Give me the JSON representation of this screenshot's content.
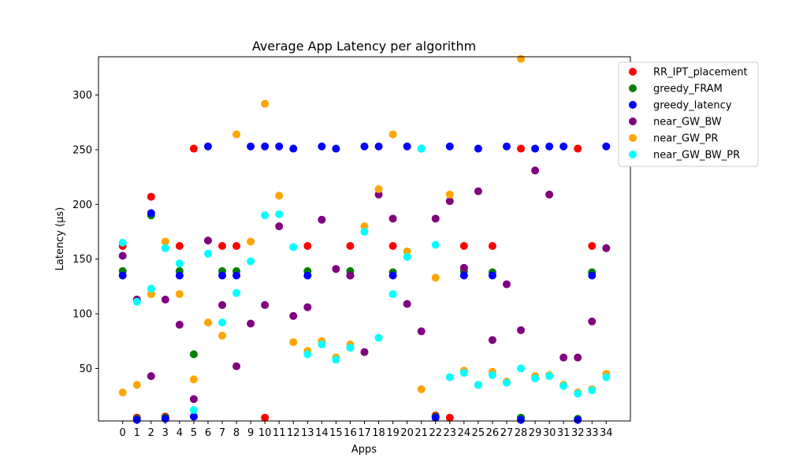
{
  "chart_data": {
    "type": "scatter",
    "title": "Average App Latency per algorithm",
    "xlabel": "Apps",
    "ylabel": "Latency (μs)",
    "x": [
      0,
      1,
      2,
      3,
      4,
      5,
      6,
      7,
      8,
      9,
      10,
      11,
      12,
      13,
      14,
      15,
      16,
      17,
      18,
      19,
      20,
      21,
      22,
      23,
      24,
      25,
      26,
      27,
      28,
      29,
      30,
      31,
      32,
      33,
      34
    ],
    "xlim": [
      -1.7,
      35.7
    ],
    "ylim": [
      2,
      335
    ],
    "yticks": [
      50,
      100,
      150,
      200,
      250,
      300
    ],
    "grid": false,
    "legend_position": "top-right outside",
    "series": [
      {
        "name": "RR_IPT_placement",
        "color": "#ff0000",
        "values": [
          162,
          5,
          207,
          6,
          162,
          251,
          null,
          162,
          162,
          null,
          5,
          null,
          null,
          162,
          null,
          null,
          162,
          null,
          null,
          162,
          null,
          null,
          7,
          5,
          162,
          null,
          162,
          null,
          251,
          null,
          null,
          null,
          251,
          162,
          null
        ]
      },
      {
        "name": "greedy_FRAM",
        "color": "#008000",
        "values": [
          139,
          4,
          190,
          5,
          139,
          63,
          null,
          139,
          139,
          null,
          null,
          null,
          null,
          139,
          null,
          null,
          139,
          null,
          null,
          138,
          null,
          null,
          6,
          null,
          139,
          null,
          138,
          null,
          5,
          null,
          null,
          null,
          4,
          138,
          null
        ]
      },
      {
        "name": "greedy_latency",
        "color": "#0000ff",
        "values": [
          135,
          3,
          192,
          4,
          135,
          6,
          253,
          135,
          135,
          253,
          253,
          253,
          251,
          135,
          253,
          251,
          135,
          253,
          253,
          135,
          253,
          251,
          5,
          253,
          135,
          251,
          135,
          253,
          3,
          251,
          253,
          253,
          3,
          135,
          253
        ]
      },
      {
        "name": "near_GW_BW",
        "color": "#800080",
        "values": [
          153,
          113,
          43,
          113,
          90,
          22,
          167,
          108,
          52,
          91,
          108,
          180,
          98,
          106,
          186,
          141,
          135,
          65,
          209,
          187,
          109,
          84,
          187,
          203,
          142,
          212,
          76,
          127,
          85,
          231,
          209,
          60,
          60,
          93,
          160
        ]
      },
      {
        "name": "near_GW_PR",
        "color": "#ffa500",
        "values": [
          28,
          35,
          118,
          166,
          118,
          40,
          92,
          80,
          264,
          166,
          292,
          208,
          74,
          66,
          75,
          60,
          72,
          180,
          214,
          264,
          157,
          31,
          133,
          209,
          48,
          35,
          47,
          38,
          333,
          43,
          44,
          35,
          28,
          31,
          45
        ]
      },
      {
        "name": "near_GW_BW_PR",
        "color": "#00ffff",
        "values": [
          165,
          111,
          123,
          160,
          146,
          12,
          155,
          92,
          119,
          148,
          190,
          191,
          161,
          63,
          72,
          58,
          69,
          175,
          78,
          118,
          152,
          251,
          163,
          42,
          46,
          35,
          44,
          37,
          50,
          41,
          43,
          34,
          27,
          30,
          42
        ]
      }
    ]
  }
}
